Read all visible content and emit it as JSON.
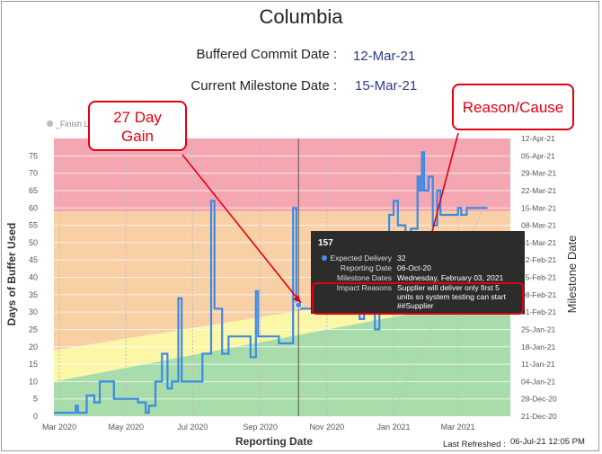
{
  "title": "Columbia",
  "info": {
    "buffered_commit_label": "Buffered Commit Date :",
    "buffered_commit_value": "12-Mar-21",
    "current_milestone_label": "Current Milestone Date :",
    "current_milestone_value": "15-Mar-21"
  },
  "legend": {
    "item": "_Finish L"
  },
  "callouts": {
    "gain": "27 Day\nGain",
    "reason": "Reason/Cause"
  },
  "tooltip": {
    "title": "157",
    "rows": [
      {
        "key": "Expected Delivery",
        "value": "32"
      },
      {
        "key": "Reporting Date",
        "value": "06-Oct-20"
      },
      {
        "key": "Milestone Dates",
        "value": "Wednesday, February 03, 2021"
      },
      {
        "key": "Impact Reasons",
        "value": "Supplier will deliver only first 5 units so system testing can start ##Supplier"
      }
    ]
  },
  "refresh": {
    "label": "Last Refreshed :",
    "value": "06-Jul-21 12:05 PM"
  },
  "colors": {
    "red_zone": "#f4a6b1",
    "orange_zone": "#f9cfa5",
    "yellow_zone": "#fbf7a6",
    "green_zone": "#a8dcab",
    "line": "#3b8ae6",
    "callout": "#e3000f"
  },
  "chart_data": {
    "type": "line",
    "xlabel": "Reporting Date",
    "ylabel": "Days of Buffer Used",
    "y2label": "Milestone Date",
    "ylim": [
      0,
      80
    ],
    "y_ticks": [
      0,
      5,
      10,
      15,
      20,
      25,
      30,
      35,
      40,
      45,
      50,
      55,
      60,
      65,
      70,
      75
    ],
    "x_range": [
      "2020-02-25",
      "2021-04-18"
    ],
    "x_ticks": [
      {
        "date": "2020-03-01",
        "label": "Mar 2020"
      },
      {
        "date": "2020-05-01",
        "label": "May 2020"
      },
      {
        "date": "2020-07-01",
        "label": "Jul 2020"
      },
      {
        "date": "2020-09-01",
        "label": "Sep 2020"
      },
      {
        "date": "2020-11-01",
        "label": "Nov 2020"
      },
      {
        "date": "2021-01-01",
        "label": "Jan 2021"
      },
      {
        "date": "2021-03-01",
        "label": "Mar 2021"
      }
    ],
    "y2_ticks": [
      "21-Dec-20",
      "28-Dec-20",
      "04-Jan-21",
      "11-Jan-21",
      "18-Jan-21",
      "25-Jan-21",
      "01-Feb-21",
      "08-Feb-21",
      "15-Feb-21",
      "22-Feb-21",
      "01-Mar-21",
      "08-Mar-21",
      "15-Mar-21",
      "22-Mar-21",
      "29-Mar-21",
      "05-Apr-21",
      "12-Apr-21"
    ],
    "zones": {
      "red_from": 59,
      "green_to": {
        "start": 10,
        "end": 35
      },
      "yellow_to": {
        "start": 19,
        "end": 40
      }
    },
    "series": [
      {
        "values": [
          [
            "2020-02-25",
            1
          ],
          [
            "2020-03-16",
            1
          ],
          [
            "2020-03-16",
            3
          ],
          [
            "2020-03-18",
            3
          ],
          [
            "2020-03-18",
            1
          ],
          [
            "2020-03-26",
            1
          ],
          [
            "2020-03-26",
            6
          ],
          [
            "2020-04-02",
            6
          ],
          [
            "2020-04-02",
            4
          ],
          [
            "2020-04-07",
            4
          ],
          [
            "2020-04-07",
            10
          ],
          [
            "2020-04-20",
            10
          ],
          [
            "2020-04-20",
            5
          ],
          [
            "2020-05-12",
            5
          ],
          [
            "2020-05-12",
            4
          ],
          [
            "2020-05-19",
            4
          ],
          [
            "2020-05-19",
            1
          ],
          [
            "2020-05-22",
            1
          ],
          [
            "2020-05-22",
            3
          ],
          [
            "2020-05-28",
            3
          ],
          [
            "2020-05-28",
            10
          ],
          [
            "2020-06-03",
            10
          ],
          [
            "2020-06-03",
            18
          ],
          [
            "2020-06-08",
            18
          ],
          [
            "2020-06-08",
            8
          ],
          [
            "2020-06-12",
            8
          ],
          [
            "2020-06-12",
            10
          ],
          [
            "2020-06-18",
            10
          ],
          [
            "2020-06-18",
            34
          ],
          [
            "2020-06-21",
            34
          ],
          [
            "2020-06-21",
            10
          ],
          [
            "2020-07-10",
            10
          ],
          [
            "2020-07-10",
            18
          ],
          [
            "2020-07-18",
            18
          ],
          [
            "2020-07-18",
            62
          ],
          [
            "2020-07-21",
            62
          ],
          [
            "2020-07-21",
            31
          ],
          [
            "2020-07-28",
            31
          ],
          [
            "2020-07-28",
            18
          ],
          [
            "2020-08-03",
            18
          ],
          [
            "2020-08-03",
            23
          ],
          [
            "2020-08-23",
            23
          ],
          [
            "2020-08-23",
            17
          ],
          [
            "2020-08-28",
            17
          ],
          [
            "2020-08-28",
            36
          ],
          [
            "2020-08-30",
            36
          ],
          [
            "2020-08-30",
            23
          ],
          [
            "2020-09-18",
            23
          ],
          [
            "2020-09-18",
            21
          ],
          [
            "2020-10-01",
            21
          ],
          [
            "2020-10-01",
            59
          ],
          [
            "2020-10-01",
            60
          ],
          [
            "2020-10-04",
            60
          ],
          [
            "2020-10-04",
            32
          ],
          [
            "2020-10-08",
            32
          ],
          [
            "2020-10-08",
            31
          ],
          [
            "2020-10-20",
            31
          ],
          [
            "2020-10-20",
            32
          ],
          [
            "2020-11-15",
            32
          ],
          [
            "2020-11-15",
            30
          ],
          [
            "2020-12-01",
            30
          ],
          [
            "2020-12-01",
            28
          ],
          [
            "2020-12-05",
            28
          ],
          [
            "2020-12-05",
            32
          ],
          [
            "2020-12-15",
            32
          ],
          [
            "2020-12-15",
            25
          ],
          [
            "2020-12-19",
            25
          ],
          [
            "2020-12-19",
            52
          ],
          [
            "2020-12-28",
            52
          ],
          [
            "2020-12-28",
            58
          ],
          [
            "2021-01-01",
            58
          ],
          [
            "2021-01-01",
            62
          ],
          [
            "2021-01-05",
            62
          ],
          [
            "2021-01-05",
            55
          ],
          [
            "2021-01-12",
            55
          ],
          [
            "2021-01-12",
            42
          ],
          [
            "2021-01-17",
            42
          ],
          [
            "2021-01-17",
            54
          ],
          [
            "2021-01-23",
            54
          ],
          [
            "2021-01-23",
            69
          ],
          [
            "2021-01-25",
            69
          ],
          [
            "2021-01-25",
            65
          ],
          [
            "2021-01-27",
            65
          ],
          [
            "2021-01-27",
            76
          ],
          [
            "2021-01-29",
            76
          ],
          [
            "2021-01-29",
            65
          ],
          [
            "2021-02-02",
            65
          ],
          [
            "2021-02-02",
            69
          ],
          [
            "2021-02-06",
            69
          ],
          [
            "2021-02-06",
            55
          ],
          [
            "2021-02-10",
            55
          ],
          [
            "2021-02-10",
            65
          ],
          [
            "2021-02-13",
            65
          ],
          [
            "2021-02-13",
            58
          ],
          [
            "2021-03-01",
            58
          ],
          [
            "2021-03-01",
            60
          ],
          [
            "2021-03-04",
            60
          ],
          [
            "2021-03-04",
            58
          ],
          [
            "2021-03-09",
            58
          ],
          [
            "2021-03-09",
            60
          ],
          [
            "2021-03-28",
            60
          ]
        ]
      }
    ],
    "selected_point": {
      "x": "2020-10-06",
      "y": 32
    }
  }
}
